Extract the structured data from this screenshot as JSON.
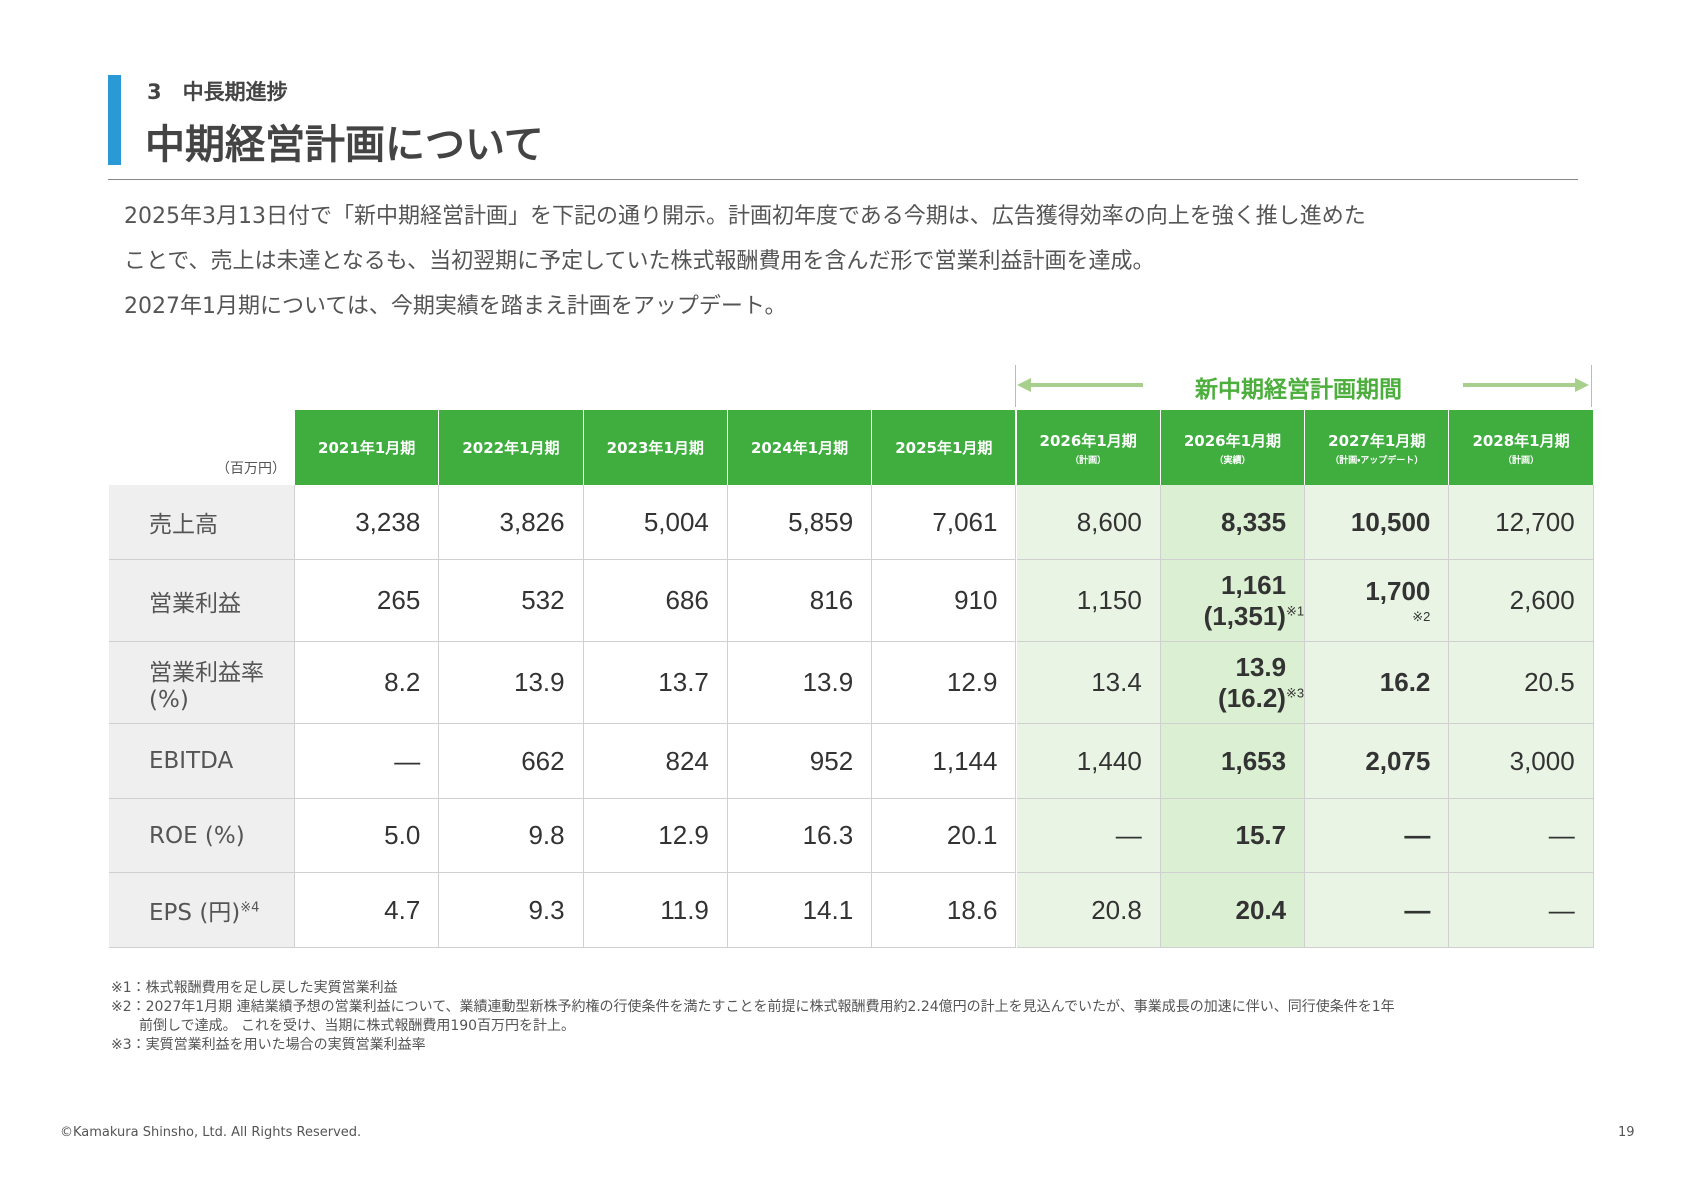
{
  "header": {
    "section": "3　中長期進捗",
    "title": "中期経営計画について"
  },
  "intro": [
    "2025年3月13日付で「新中期経営計画」を下記の通り開示。計画初年度である今期は、広告獲得効率の向上を強く推し進めた",
    "ことで、売上は未達となるも、当初翌期に予定していた株式報酬費用を含んだ形で営業利益計画を達成。",
    "2027年1月期については、今期実績を踏まえ計画をアップデート。"
  ],
  "table": {
    "period_label": "新中期経営計画期間",
    "unit": "（百万円）",
    "columns": [
      {
        "label": "2021年1月期"
      },
      {
        "label": "2022年1月期"
      },
      {
        "label": "2023年1月期"
      },
      {
        "label": "2024年1月期"
      },
      {
        "label": "2025年1月期"
      },
      {
        "label": "2026年1月期",
        "note": "（計画）"
      },
      {
        "label": "2026年1月期",
        "note": "（実績）"
      },
      {
        "label": "2027年1月期",
        "note": "（計画・アップデート）"
      },
      {
        "label": "2028年1月期",
        "note": "（計画）"
      }
    ],
    "rows": [
      {
        "label": "売上高",
        "cells": [
          "3,238",
          "3,826",
          "5,004",
          "5,859",
          "7,061",
          "8,600",
          "8,335",
          "10,500",
          "12,700"
        ]
      },
      {
        "label": "営業利益",
        "cells": [
          "265",
          "532",
          "686",
          "816",
          "910",
          "1,150",
          {
            "main": "1,161",
            "sub": "(1,351)",
            "note": "※1"
          },
          {
            "main": "1,700",
            "note": "※2"
          },
          "2,600"
        ]
      },
      {
        "label": "営業利益率",
        "label2": "(%)",
        "cells": [
          "8.2",
          "13.9",
          "13.7",
          "13.9",
          "12.9",
          "13.4",
          {
            "main": "13.9",
            "sub": "(16.2)",
            "note": "※3"
          },
          "16.2",
          "20.5"
        ]
      },
      {
        "label": "EBITDA",
        "cells": [
          "—",
          "662",
          "824",
          "952",
          "1,144",
          "1,440",
          "1,653",
          "2,075",
          "3,000"
        ]
      },
      {
        "label": "ROE (%)",
        "cells": [
          "5.0",
          "9.8",
          "12.9",
          "16.3",
          "20.1",
          "—",
          "15.7",
          "—",
          "—"
        ]
      },
      {
        "label": "EPS (円)",
        "label_note": "※4",
        "cells": [
          "4.7",
          "9.3",
          "11.9",
          "14.1",
          "18.6",
          "20.8",
          "20.4",
          "—",
          "—"
        ]
      }
    ]
  },
  "footnotes": [
    [
      "※1：株式報酬費用を足し戻した実質営業利益"
    ],
    [
      "※2：2027年1月期 連結業績予想の営業利益について、業績連動型新株予約権の行使条件を満たすことを前提に株式報酬費用約2.24億円の計上を見込んでいたが、事業成長の加速に伴い、同行使条件を1年",
      "　　前倒しで達成。 これを受け、当期に株式報酬費用190百万円を計上。"
    ],
    [
      "※3：実質営業利益を用いた場合の実質営業利益率"
    ]
  ],
  "footer": {
    "copyright": "©Kamakura Shinsho, Ltd. All Rights Reserved.",
    "page": "19"
  }
}
